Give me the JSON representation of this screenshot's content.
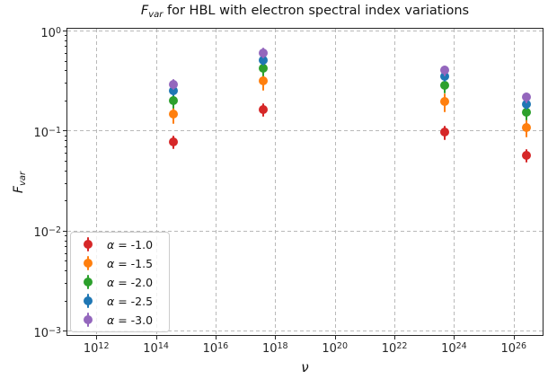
{
  "title": {
    "math": "F",
    "math_sub": "var",
    "text": " for HBL with electron spectral index variations"
  },
  "xlabel": "ν",
  "ylabel": {
    "math": "F",
    "math_sub": "var"
  },
  "axis_ticks": {
    "x_base": "10",
    "x_exponents": [
      "12",
      "14",
      "16",
      "18",
      "20",
      "22",
      "24",
      "26"
    ],
    "y_base": "10",
    "y_exponents": [
      "0",
      "−1",
      "−2",
      "−3"
    ]
  },
  "colors": {
    "grid": "#b9b9b9",
    "spine": "#262626",
    "text": "#141414"
  },
  "chart_data": {
    "type": "scatter",
    "title": "F_var for HBL with electron spectral index variations",
    "xlabel": "ν",
    "ylabel": "F_var",
    "xscale": "log",
    "yscale": "log",
    "xlim": [
      100000000000.0,
      1e+27
    ],
    "ylim": [
      0.00085,
      1.05
    ],
    "grid": true,
    "legend_position": "lower left",
    "x_grid_exponents": [
      12,
      14,
      16,
      18,
      20,
      22,
      24,
      26
    ],
    "y_grid_exponents": [
      0,
      -1,
      -2,
      -3
    ],
    "x": [
      390000000000000.0,
      4e+17,
      4.8e+23,
      2.7e+26
    ],
    "series": [
      {
        "label": "α = -1.0",
        "color": "#d62728",
        "y": [
          0.077,
          0.163,
          0.096,
          0.057
        ],
        "y_err": [
          0.012,
          0.025,
          0.015,
          0.009
        ]
      },
      {
        "label": "α = -1.5",
        "color": "#ff7f0e",
        "y": [
          0.148,
          0.315,
          0.194,
          0.107
        ],
        "y_err": [
          0.031,
          0.066,
          0.041,
          0.022
        ]
      },
      {
        "label": "α = -2.0",
        "color": "#2ca02c",
        "y": [
          0.2,
          0.42,
          0.284,
          0.153
        ],
        "y_err": [
          0.034,
          0.072,
          0.049,
          0.026
        ]
      },
      {
        "label": "α = -2.5",
        "color": "#1f77b4",
        "y": [
          0.25,
          0.505,
          0.349,
          0.185
        ],
        "y_err": [
          0.031,
          0.062,
          0.043,
          0.023
        ]
      },
      {
        "label": "α = -3.0",
        "color": "#9467bd",
        "y": [
          0.29,
          0.6,
          0.4,
          0.215
        ],
        "y_err": [
          0.036,
          0.075,
          0.05,
          0.027
        ]
      }
    ]
  }
}
